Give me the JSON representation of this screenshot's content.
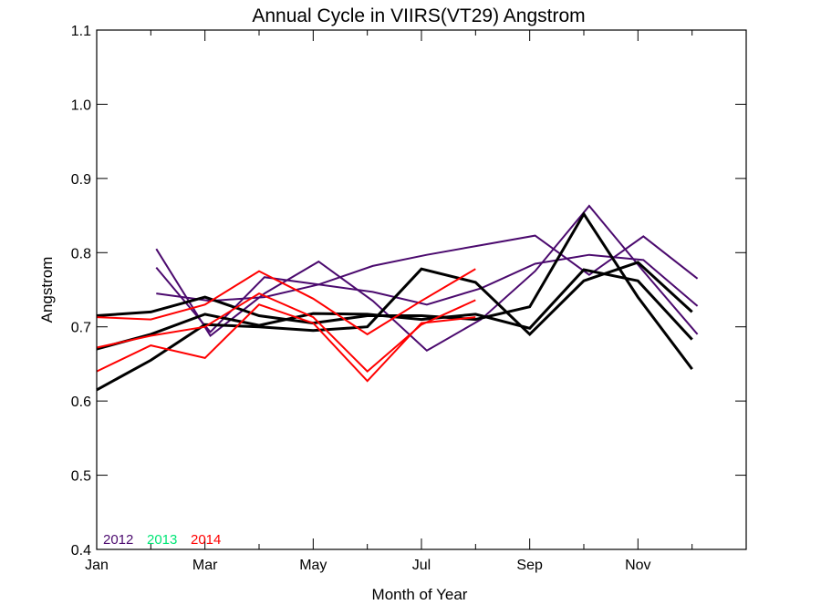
{
  "chart_data": {
    "type": "line",
    "title": "Annual Cycle in VIIRS(VT29) Angstrom",
    "xlabel": "Month of Year",
    "ylabel": "Angstrom",
    "xlim": [
      1,
      13
    ],
    "ylim": [
      0.4,
      1.1
    ],
    "x_ticks": [
      {
        "value": 1,
        "label": "Jan"
      },
      {
        "value": 3,
        "label": "Mar"
      },
      {
        "value": 5,
        "label": "May"
      },
      {
        "value": 7,
        "label": "Jul"
      },
      {
        "value": 9,
        "label": "Sep"
      },
      {
        "value": 11,
        "label": "Nov"
      }
    ],
    "x_minor_ticks": [
      2,
      4,
      6,
      8,
      10,
      12
    ],
    "y_ticks": [
      {
        "value": 0.4,
        "label": "0.4"
      },
      {
        "value": 0.5,
        "label": "0.5"
      },
      {
        "value": 0.6,
        "label": "0.6"
      },
      {
        "value": 0.7,
        "label": "0.7"
      },
      {
        "value": 0.8,
        "label": "0.8"
      },
      {
        "value": 0.9,
        "label": "0.9"
      },
      {
        "value": 1.0,
        "label": "1.0"
      },
      {
        "value": 1.1,
        "label": "1.1"
      }
    ],
    "legend": {
      "placement": "bottom-left",
      "entries": [
        {
          "label": "2012",
          "color": "#4B0A6E"
        },
        {
          "label": "2013",
          "color": "#00E676"
        },
        {
          "label": "2014",
          "color": "#FF0000"
        }
      ]
    },
    "series": [
      {
        "color": "#4B0A6E",
        "width": 2,
        "x": [
          2.1,
          3.1,
          4.1,
          5.1,
          6.1,
          7.1,
          8.1,
          9.1,
          10.1,
          11.1,
          12.1
        ],
        "y": [
          0.805,
          0.688,
          0.745,
          0.788,
          0.735,
          0.668,
          0.71,
          0.775,
          0.863,
          0.775,
          0.69
        ]
      },
      {
        "color": "#4B0A6E",
        "width": 2,
        "x": [
          2.1,
          3.1,
          4.1,
          5.1,
          6.1,
          7.1,
          8.1,
          9.1,
          10.1,
          11.1,
          12.1
        ],
        "y": [
          0.78,
          0.693,
          0.767,
          0.757,
          0.747,
          0.73,
          0.752,
          0.785,
          0.797,
          0.79,
          0.728
        ]
      },
      {
        "color": "#4B0A6E",
        "width": 2,
        "x": [
          2.1,
          3.1,
          4.1,
          5.1,
          6.1,
          7.1,
          8.1,
          9.1,
          10.1,
          11.1,
          12.1
        ],
        "y": [
          0.745,
          0.735,
          0.74,
          0.757,
          0.782,
          0.797,
          0.81,
          0.823,
          0.77,
          0.822,
          0.765
        ]
      },
      {
        "color": "#000000",
        "width": 3,
        "x": [
          1,
          2,
          3,
          4,
          5,
          6,
          7,
          8,
          9,
          10,
          11,
          12
        ],
        "y": [
          0.715,
          0.72,
          0.74,
          0.715,
          0.705,
          0.715,
          0.715,
          0.71,
          0.727,
          0.852,
          0.74,
          0.643
        ]
      },
      {
        "color": "#000000",
        "width": 3,
        "x": [
          1,
          2,
          3,
          4,
          5,
          6,
          7,
          8,
          9,
          10,
          11,
          12
        ],
        "y": [
          0.67,
          0.69,
          0.717,
          0.702,
          0.718,
          0.717,
          0.71,
          0.717,
          0.698,
          0.777,
          0.762,
          0.683
        ]
      },
      {
        "color": "#000000",
        "width": 3,
        "x": [
          1,
          2,
          3,
          4,
          5,
          6,
          7,
          8,
          9,
          10,
          11,
          12
        ],
        "y": [
          0.615,
          0.655,
          0.703,
          0.7,
          0.695,
          0.7,
          0.778,
          0.76,
          0.69,
          0.762,
          0.787,
          0.72
        ]
      },
      {
        "color": "#FF0000",
        "width": 2,
        "x": [
          1,
          2,
          3,
          4,
          5,
          6,
          7,
          8
        ],
        "y": [
          0.713,
          0.71,
          0.73,
          0.775,
          0.738,
          0.69,
          0.735,
          0.778
        ]
      },
      {
        "color": "#FF0000",
        "width": 2,
        "x": [
          1,
          2,
          3,
          4,
          5,
          6,
          7,
          8
        ],
        "y": [
          0.672,
          0.688,
          0.7,
          0.745,
          0.713,
          0.64,
          0.703,
          0.736
        ]
      },
      {
        "color": "#FF0000",
        "width": 2,
        "x": [
          1,
          2,
          3,
          4,
          5,
          6,
          7,
          8
        ],
        "y": [
          0.64,
          0.675,
          0.658,
          0.73,
          0.705,
          0.627,
          0.705,
          0.713
        ]
      }
    ]
  }
}
